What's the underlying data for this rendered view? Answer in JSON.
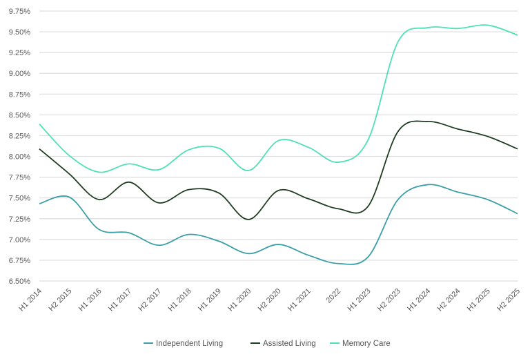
{
  "chart_data": {
    "type": "line",
    "title": "",
    "xlabel": "",
    "ylabel": "",
    "categories": [
      "H1 2014",
      "H2 2015",
      "H1 2016",
      "H1 2017",
      "H2 2017",
      "H1 2018",
      "H1 2019",
      "H1 2020",
      "H2 2020",
      "H1 2021",
      "2022",
      "H1 2023",
      "H2 2023",
      "H1 2024",
      "H2 2024",
      "H1 2025",
      "H2 2025"
    ],
    "ylim": [
      6.5,
      9.75
    ],
    "yticks": [
      "6.50%",
      "6.75%",
      "7.00%",
      "7.25%",
      "7.50%",
      "7.75%",
      "8.00%",
      "8.25%",
      "8.50%",
      "8.75%",
      "9.00%",
      "9.25%",
      "9.50%",
      "9.75%"
    ],
    "grid": true,
    "smooth": true,
    "legend_position": "bottom",
    "series": [
      {
        "name": "Independent Living",
        "color": "#3a9fa6",
        "values": [
          7.43,
          7.51,
          7.12,
          7.08,
          6.93,
          7.06,
          6.98,
          6.83,
          6.94,
          6.81,
          6.71,
          6.79,
          7.48,
          7.66,
          7.57,
          7.48,
          7.31
        ]
      },
      {
        "name": "Assisted Living",
        "color": "#1f3d22",
        "values": [
          8.09,
          7.79,
          7.48,
          7.69,
          7.44,
          7.6,
          7.56,
          7.24,
          7.59,
          7.49,
          7.37,
          7.4,
          8.3,
          8.42,
          8.33,
          8.24,
          8.09
        ]
      },
      {
        "name": "Memory Care",
        "color": "#4fe0b5",
        "values": [
          8.39,
          8.01,
          7.81,
          7.91,
          7.84,
          8.08,
          8.1,
          7.83,
          8.19,
          8.11,
          7.93,
          8.2,
          9.38,
          9.55,
          9.54,
          9.58,
          9.46
        ]
      }
    ]
  }
}
